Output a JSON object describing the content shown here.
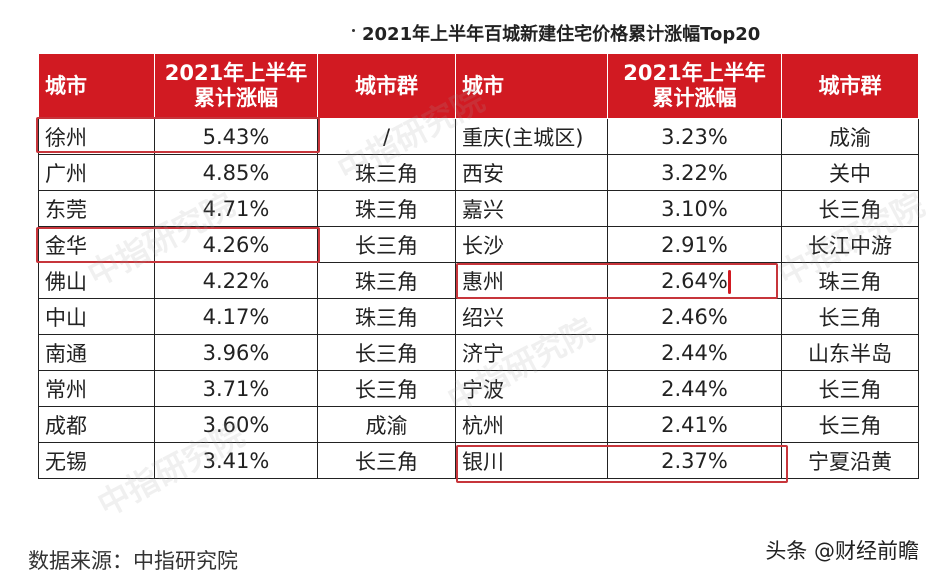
{
  "title": "2021年上半年百城新建住宅价格累计涨幅Top20",
  "headers": {
    "city": "城市",
    "growth_line1": "2021年上半年",
    "growth_line2": "累计涨幅",
    "group": "城市群"
  },
  "left_rows": [
    {
      "city": "徐州",
      "growth": "5.43%",
      "group": "/"
    },
    {
      "city": "广州",
      "growth": "4.85%",
      "group": "珠三角"
    },
    {
      "city": "东莞",
      "growth": "4.71%",
      "group": "珠三角"
    },
    {
      "city": "金华",
      "growth": "4.26%",
      "group": "长三角"
    },
    {
      "city": "佛山",
      "growth": "4.22%",
      "group": "珠三角"
    },
    {
      "city": "中山",
      "growth": "4.17%",
      "group": "珠三角"
    },
    {
      "city": "南通",
      "growth": "3.96%",
      "group": "长三角"
    },
    {
      "city": "常州",
      "growth": "3.71%",
      "group": "长三角"
    },
    {
      "city": "成都",
      "growth": "3.60%",
      "group": "成渝"
    },
    {
      "city": "无锡",
      "growth": "3.41%",
      "group": "长三角"
    }
  ],
  "right_rows": [
    {
      "city": "重庆(主城区)",
      "growth": "3.23%",
      "group": "成渝"
    },
    {
      "city": "西安",
      "growth": "3.22%",
      "group": "关中"
    },
    {
      "city": "嘉兴",
      "growth": "3.10%",
      "group": "长三角"
    },
    {
      "city": "长沙",
      "growth": "2.91%",
      "group": "长江中游"
    },
    {
      "city": "惠州",
      "growth": "2.64%",
      "group": "珠三角"
    },
    {
      "city": "绍兴",
      "growth": "2.46%",
      "group": "长三角"
    },
    {
      "city": "济宁",
      "growth": "2.44%",
      "group": "山东半岛"
    },
    {
      "city": "宁波",
      "growth": "2.44%",
      "group": "长三角"
    },
    {
      "city": "杭州",
      "growth": "2.41%",
      "group": "长三角"
    },
    {
      "city": "银川",
      "growth": "2.37%",
      "group": "宁夏沿黄"
    }
  ],
  "watermark": "中指研究院",
  "source": "数据来源：中指研究院",
  "brand": "头条 @财经前瞻",
  "colors": {
    "header_bg": "#d11a22",
    "highlight_border": "#c7353b"
  }
}
